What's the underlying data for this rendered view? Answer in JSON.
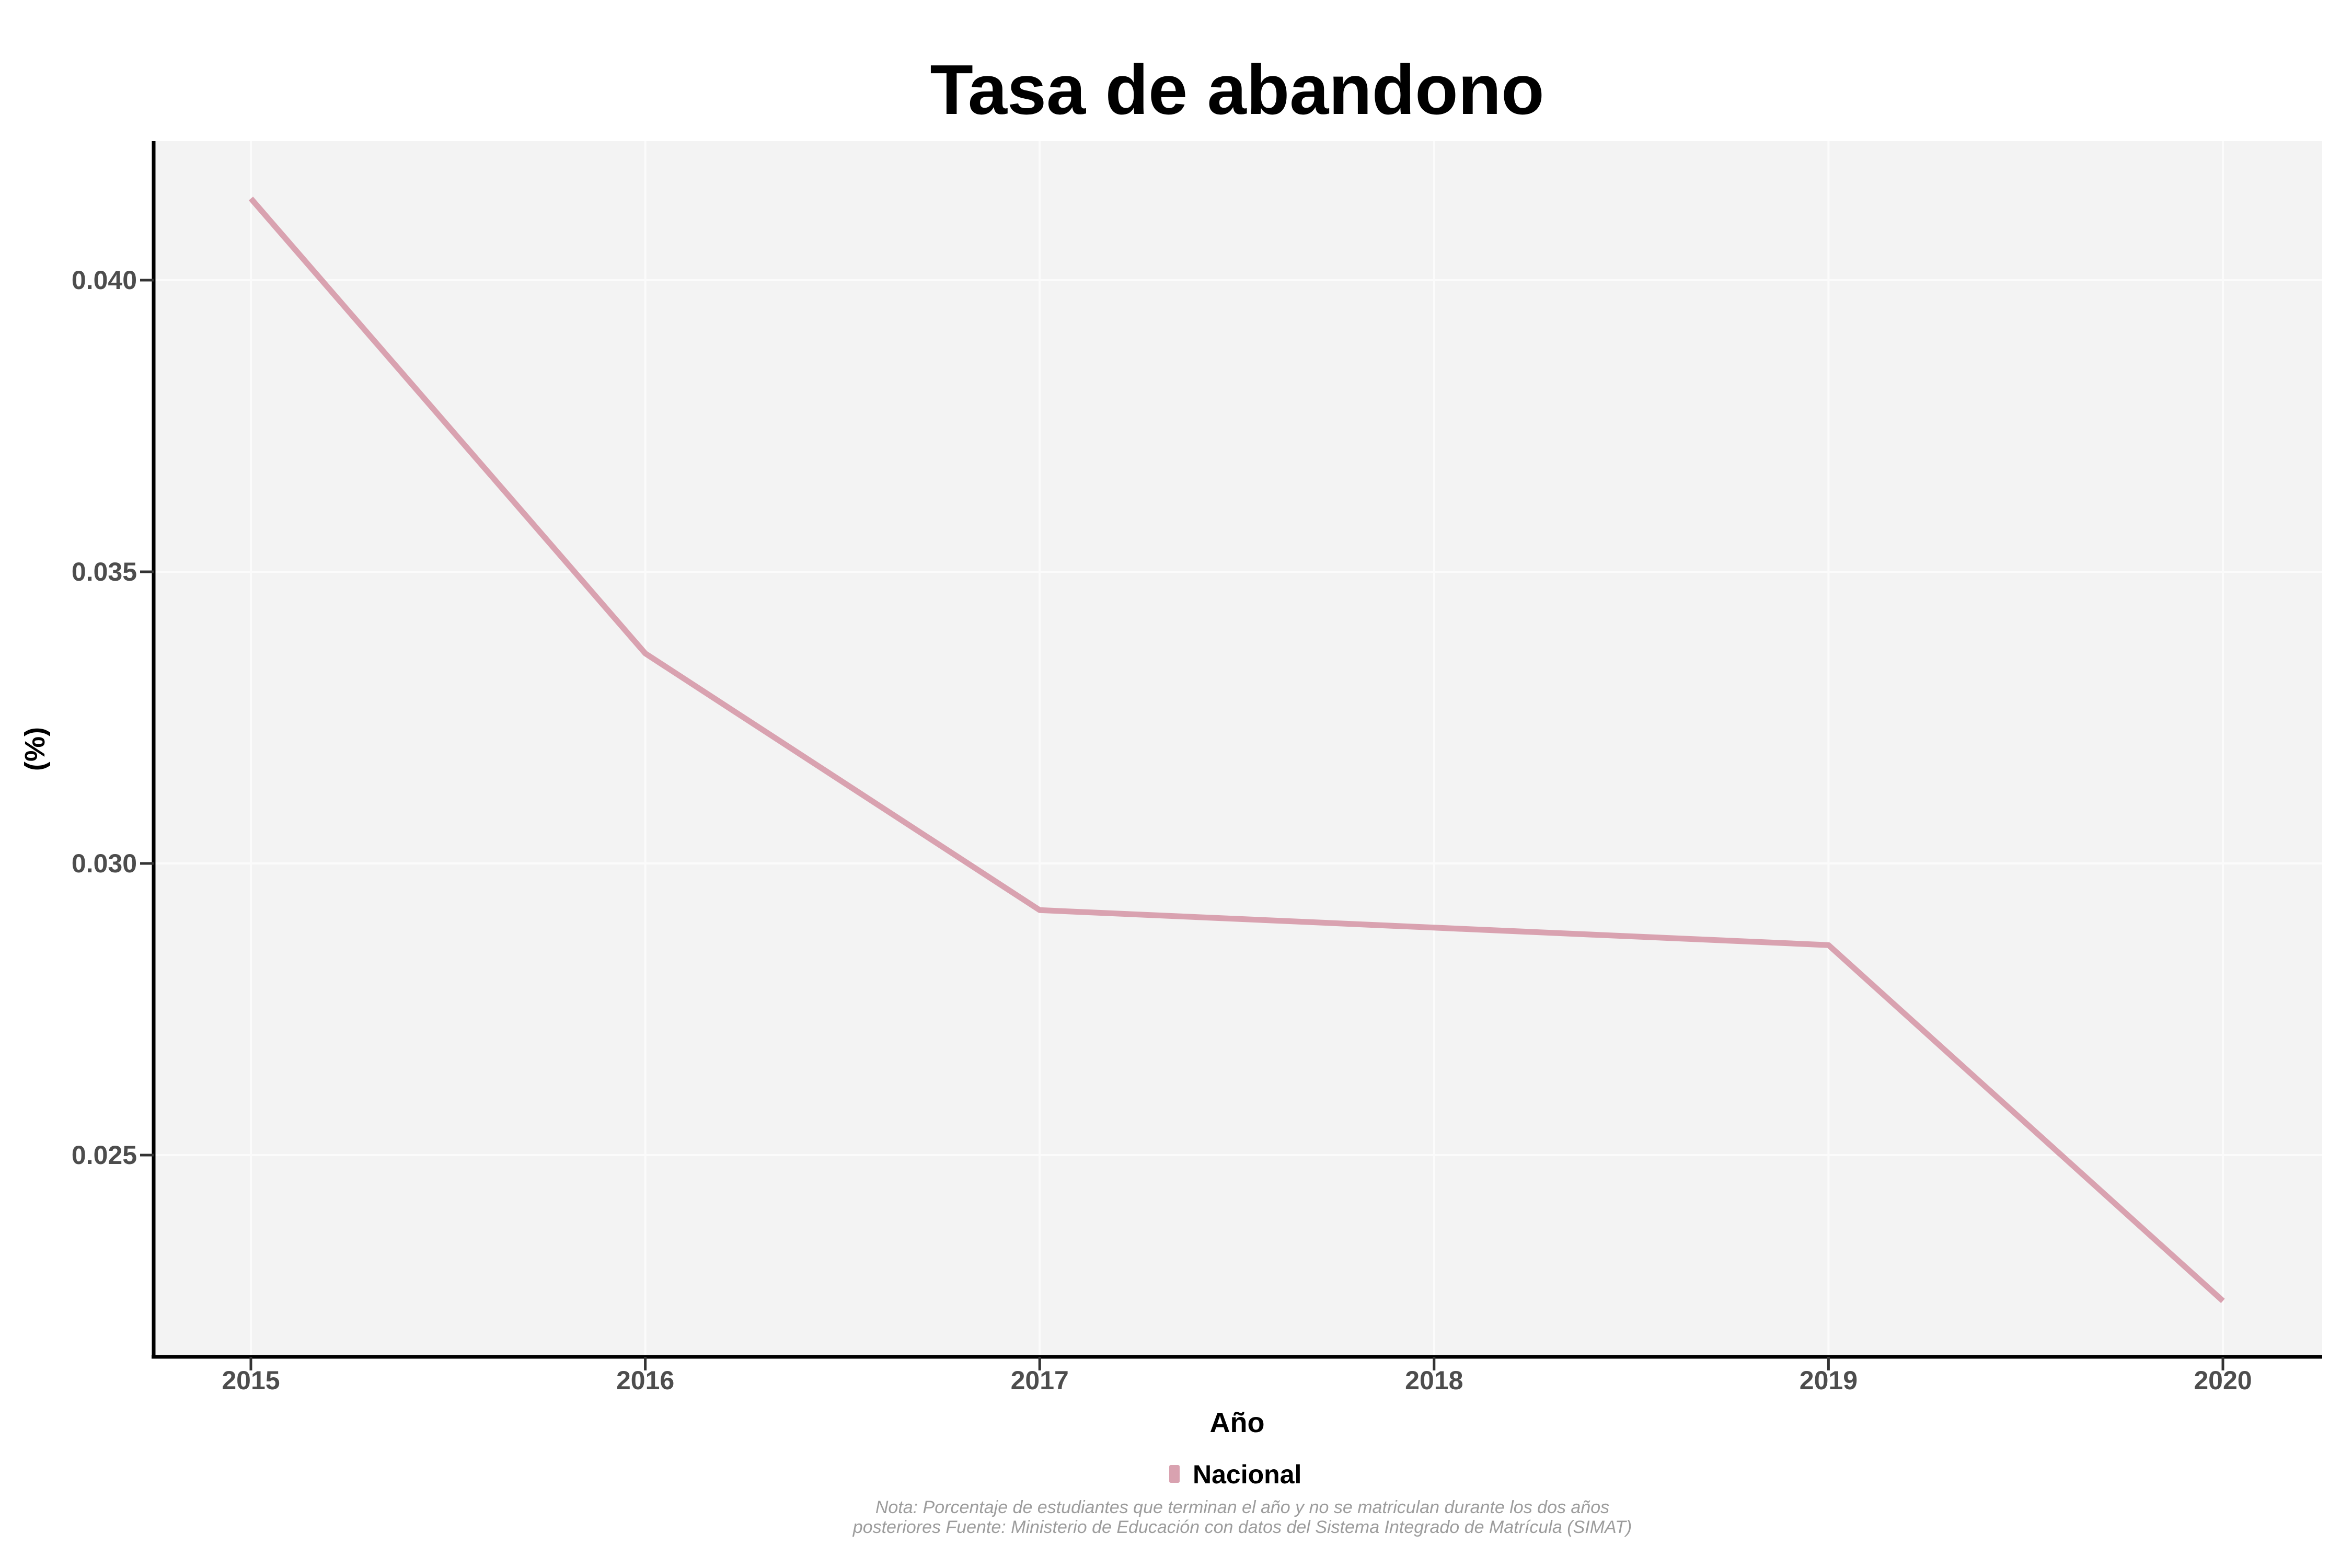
{
  "title": "Tasa de abandono",
  "y_axis": {
    "label": "(%)",
    "ticks": [
      "0.040",
      "0.035",
      "0.030",
      "0.025"
    ],
    "tick_values": [
      0.04,
      0.035,
      0.03,
      0.025
    ]
  },
  "x_axis": {
    "label": "Año",
    "ticks": [
      "2015",
      "2016",
      "2017",
      "2018",
      "2019",
      "2020"
    ]
  },
  "legend": {
    "series_label": "Nacional",
    "color": "#d9a2b0"
  },
  "caption_line1": "Nota: Porcentaje de estudiantes que terminan el año y no se matriculan durante los dos años",
  "caption_line2": "posteriores Fuente: Ministerio de Educación con datos del Sistema Integrado de Matrícula (SIMAT)",
  "colors": {
    "panel_background": "#f3f3f3",
    "gridline": "#fbfbfb",
    "axis_line": "#000000",
    "tick_label": "#4d4d4d",
    "caption": "#9c9c9c"
  },
  "chart_data": {
    "type": "line",
    "x": [
      2015,
      2016,
      2017,
      2018,
      2019,
      2020
    ],
    "series": [
      {
        "name": "Nacional",
        "values": [
          0.0414,
          0.0336,
          0.0292,
          0.0289,
          0.0286,
          0.0225
        ],
        "color": "#d9a2b0"
      }
    ],
    "title": "Tasa de abandono",
    "xlabel": "Año",
    "ylabel": "(%)",
    "ylim": [
      0.0215,
      0.0424
    ],
    "yticks": [
      0.025,
      0.03,
      0.035,
      0.04
    ],
    "grid": true,
    "legend_position": "bottom"
  }
}
